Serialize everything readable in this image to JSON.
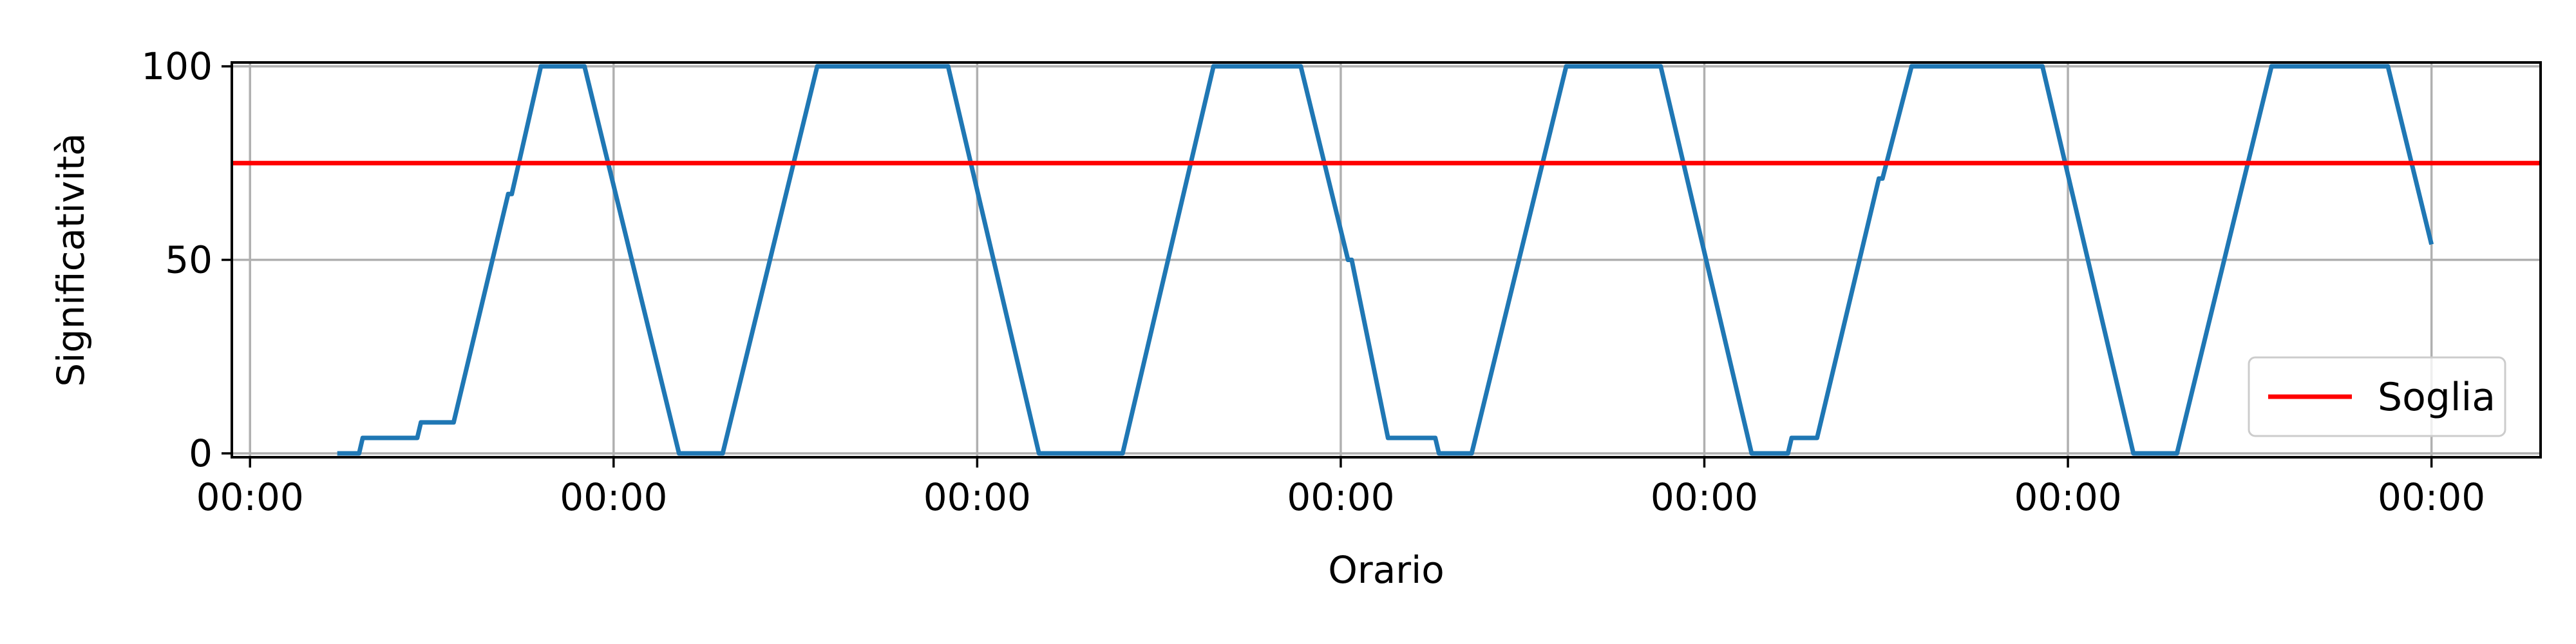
{
  "chart_data": {
    "type": "line",
    "title": "",
    "xlabel": "Orario",
    "ylabel": "Significatività",
    "x_tick_labels": [
      "00:00",
      "00:00",
      "00:00",
      "00:00",
      "00:00",
      "00:00",
      "00:00"
    ],
    "y_ticks": [
      0,
      50,
      100
    ],
    "xlim": [
      -0.05,
      6.3
    ],
    "ylim": [
      -1,
      101
    ],
    "grid": true,
    "legend_position": "lower-right",
    "series": [
      {
        "name": "",
        "color": "#1f77b4",
        "points": [
          [
            0.24,
            0
          ],
          [
            0.3,
            0
          ],
          [
            0.31,
            4
          ],
          [
            0.46,
            4
          ],
          [
            0.47,
            8
          ],
          [
            0.56,
            8
          ],
          [
            0.71,
            67
          ],
          [
            0.72,
            67
          ],
          [
            0.8,
            100
          ],
          [
            0.92,
            100
          ],
          [
            1.18,
            0
          ],
          [
            1.3,
            0
          ],
          [
            1.56,
            100
          ],
          [
            1.92,
            100
          ],
          [
            2.17,
            0
          ],
          [
            2.4,
            0
          ],
          [
            2.65,
            100
          ],
          [
            2.89,
            100
          ],
          [
            3.02,
            50
          ],
          [
            3.03,
            50
          ],
          [
            3.13,
            4
          ],
          [
            3.26,
            4
          ],
          [
            3.27,
            0
          ],
          [
            3.36,
            0
          ],
          [
            3.62,
            100
          ],
          [
            3.88,
            100
          ],
          [
            4.13,
            0
          ],
          [
            4.23,
            0
          ],
          [
            4.24,
            4
          ],
          [
            4.31,
            4
          ],
          [
            4.48,
            71
          ],
          [
            4.49,
            71
          ],
          [
            4.57,
            100
          ],
          [
            4.93,
            100
          ],
          [
            5.18,
            0
          ],
          [
            5.3,
            0
          ],
          [
            5.56,
            100
          ],
          [
            5.88,
            100
          ],
          [
            6.0,
            54
          ]
        ]
      },
      {
        "name": "Soglia",
        "color": "#ff0000",
        "y": 75
      }
    ]
  }
}
